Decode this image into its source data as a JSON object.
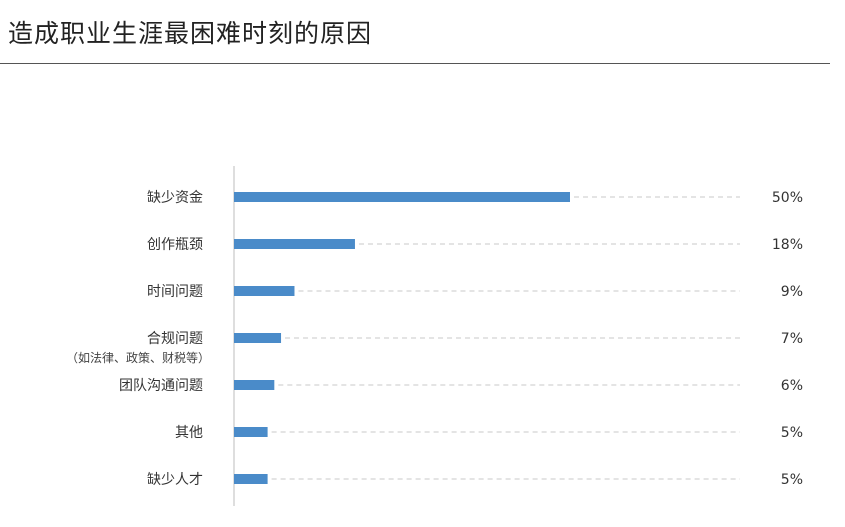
{
  "chart_data": {
    "type": "bar",
    "orientation": "horizontal",
    "title": "造成职业生涯最困难时刻的原因",
    "categories": [
      {
        "label": "缺少资金",
        "sublabel": ""
      },
      {
        "label": "创作瓶颈",
        "sublabel": ""
      },
      {
        "label": "时间问题",
        "sublabel": ""
      },
      {
        "label": "合规问题",
        "sublabel": "（如法律、政策、财税等）"
      },
      {
        "label": "团队沟通问题",
        "sublabel": ""
      },
      {
        "label": "其他",
        "sublabel": ""
      },
      {
        "label": "缺少人才",
        "sublabel": ""
      }
    ],
    "values": [
      50,
      18,
      9,
      7,
      6,
      5,
      5
    ],
    "value_labels": [
      "50%",
      "18%",
      "9%",
      "7%",
      "6%",
      "5%",
      "5%"
    ],
    "xlim": [
      0,
      100
    ],
    "xlabel": "",
    "ylabel": "",
    "grid": "dashed leader lines per bar",
    "legend": "none",
    "colors": {
      "bar": "#4a8bc9",
      "leader": "#c8c8c8",
      "axis": "#bdbdbd"
    }
  }
}
